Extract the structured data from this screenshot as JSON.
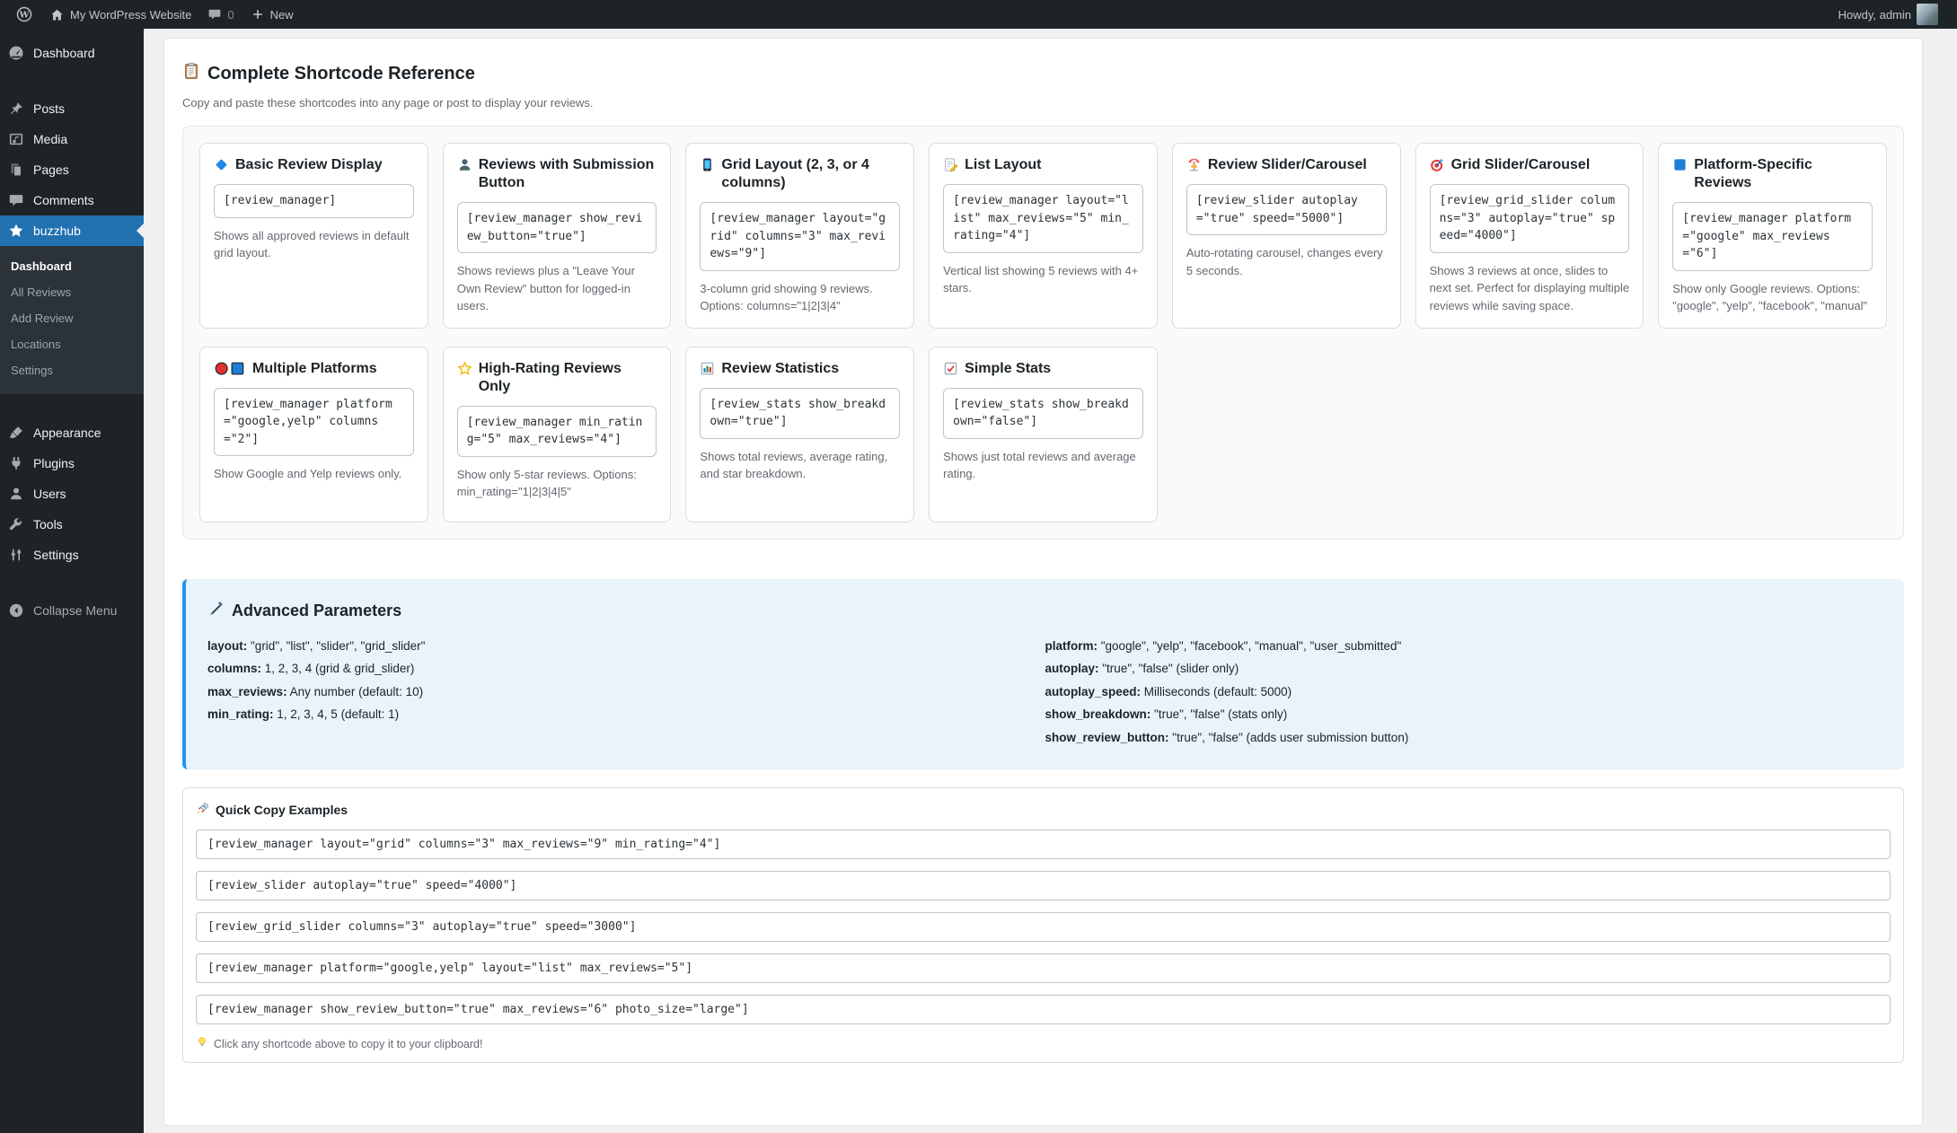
{
  "admin_bar": {
    "site_name": "My WordPress Website",
    "comment_count": "0",
    "new_label": "New",
    "howdy": "Howdy, admin"
  },
  "sidebar": {
    "groups": [
      {
        "items": [
          {
            "label": "Dashboard",
            "icon": "dashboard-icon"
          }
        ]
      },
      {
        "items": [
          {
            "label": "Posts",
            "icon": "posts-pin-icon"
          },
          {
            "label": "Media",
            "icon": "media-icon"
          },
          {
            "label": "Pages",
            "icon": "pages-icon"
          },
          {
            "label": "Comments",
            "icon": "comments-icon"
          }
        ]
      },
      {
        "items": [
          {
            "label": "buzzhub",
            "icon": "star-icon",
            "active": true,
            "submenu": [
              {
                "label": "Dashboard",
                "current": true
              },
              {
                "label": "All Reviews"
              },
              {
                "label": "Add Review"
              },
              {
                "label": "Locations"
              },
              {
                "label": "Settings"
              }
            ]
          }
        ]
      },
      {
        "items": [
          {
            "label": "Appearance",
            "icon": "appearance-brush-icon"
          },
          {
            "label": "Plugins",
            "icon": "plugins-plug-icon"
          },
          {
            "label": "Users",
            "icon": "users-icon"
          },
          {
            "label": "Tools",
            "icon": "tools-wrench-icon"
          },
          {
            "label": "Settings",
            "icon": "settings-sliders-icon"
          }
        ]
      },
      {
        "items": [
          {
            "label": "Collapse Menu",
            "icon": "collapse-arrow-icon",
            "muted": true
          }
        ]
      }
    ]
  },
  "page": {
    "title": "Complete Shortcode Reference",
    "subtitle": "Copy and paste these shortcodes into any page or post to display your reviews."
  },
  "cards": [
    {
      "icon": "diamond-icon",
      "title": "Basic Review Display",
      "code": "[review_manager]",
      "description": "Shows all approved reviews in default grid layout."
    },
    {
      "icon": "person-icon",
      "title": "Reviews with Submission Button",
      "code": "[review_manager show_review_button=\"true\"]",
      "description": "Shows reviews plus a \"Leave Your Own Review\" button for logged-in users."
    },
    {
      "icon": "phone-icon",
      "title": "Grid Layout (2, 3, or 4 columns)",
      "code": "[review_manager layout=\"grid\" columns=\"3\" max_reviews=\"9\"]",
      "description": "3-column grid showing 9 reviews. Options: columns=\"1|2|3|4\""
    },
    {
      "icon": "memo-icon",
      "title": "List Layout",
      "code": "[review_manager layout=\"list\" max_reviews=\"5\" min_rating=\"4\"]",
      "description": "Vertical list showing 5 reviews with 4+ stars."
    },
    {
      "icon": "carousel-icon",
      "title": "Review Slider/Carousel",
      "code": "[review_slider autoplay=\"true\" speed=\"5000\"]",
      "description": "Auto-rotating carousel, changes every 5 seconds."
    },
    {
      "icon": "target-icon",
      "title": "Grid Slider/Carousel",
      "code": "[review_grid_slider columns=\"3\" autoplay=\"true\" speed=\"4000\"]",
      "description": "Shows 3 reviews at once, slides to next set. Perfect for displaying multiple reviews while saving space."
    },
    {
      "icon": "blue-square-icon",
      "title": "Platform-Specific Reviews",
      "code": "[review_manager platform=\"google\" max_reviews=\"6\"]",
      "description": "Show only Google reviews. Options: \"google\", \"yelp\", \"facebook\", \"manual\""
    },
    {
      "icon": "red-circle-blue-square-icon",
      "title": "Multiple Platforms",
      "code": "[review_manager platform=\"google,yelp\" columns=\"2\"]",
      "description": "Show Google and Yelp reviews only."
    },
    {
      "icon": "star-outline-icon",
      "title": "High-Rating Reviews Only",
      "code": "[review_manager min_rating=\"5\" max_reviews=\"4\"]",
      "description": "Show only 5-star reviews. Options: min_rating=\"1|2|3|4|5\""
    },
    {
      "icon": "bar-chart-icon",
      "title": "Review Statistics",
      "code": "[review_stats show_breakdown=\"true\"]",
      "description": "Shows total reviews, average rating, and star breakdown."
    },
    {
      "icon": "checkbox-check-icon",
      "title": "Simple Stats",
      "code": "[review_stats show_breakdown=\"false\"]",
      "description": "Shows just total reviews and average rating."
    }
  ],
  "advanced": {
    "title": "Advanced Parameters",
    "left": [
      {
        "name": "layout:",
        "desc": "\"grid\", \"list\", \"slider\", \"grid_slider\""
      },
      {
        "name": "columns:",
        "desc": "1, 2, 3, 4 (grid & grid_slider)"
      },
      {
        "name": "max_reviews:",
        "desc": "Any number (default: 10)"
      },
      {
        "name": "min_rating:",
        "desc": "1, 2, 3, 4, 5 (default: 1)"
      }
    ],
    "right": [
      {
        "name": "platform:",
        "desc": "\"google\", \"yelp\", \"facebook\", \"manual\", \"user_submitted\""
      },
      {
        "name": "autoplay:",
        "desc": "\"true\", \"false\" (slider only)"
      },
      {
        "name": "autoplay_speed:",
        "desc": "Milliseconds (default: 5000)"
      },
      {
        "name": "show_breakdown:",
        "desc": "\"true\", \"false\" (stats only)"
      },
      {
        "name": "show_review_button:",
        "desc": "\"true\", \"false\" (adds user submission button)"
      }
    ]
  },
  "quick_copy": {
    "title": "Quick Copy Examples",
    "examples": [
      "[review_manager layout=\"grid\" columns=\"3\" max_reviews=\"9\" min_rating=\"4\"]",
      "[review_slider autoplay=\"true\" speed=\"4000\"]",
      "[review_grid_slider columns=\"3\" autoplay=\"true\" speed=\"3000\"]",
      "[review_manager platform=\"google,yelp\" layout=\"list\" max_reviews=\"5\"]",
      "[review_manager show_review_button=\"true\" max_reviews=\"6\" photo_size=\"large\"]"
    ],
    "tip": "Click any shortcode above to copy it to your clipboard!"
  },
  "colors": {
    "accent": "#2271b1",
    "admin_bar_bg": "#1d2327",
    "submenu_bg": "#2c3338",
    "info_bg": "#e8f3fb",
    "info_border": "#2196f3"
  }
}
